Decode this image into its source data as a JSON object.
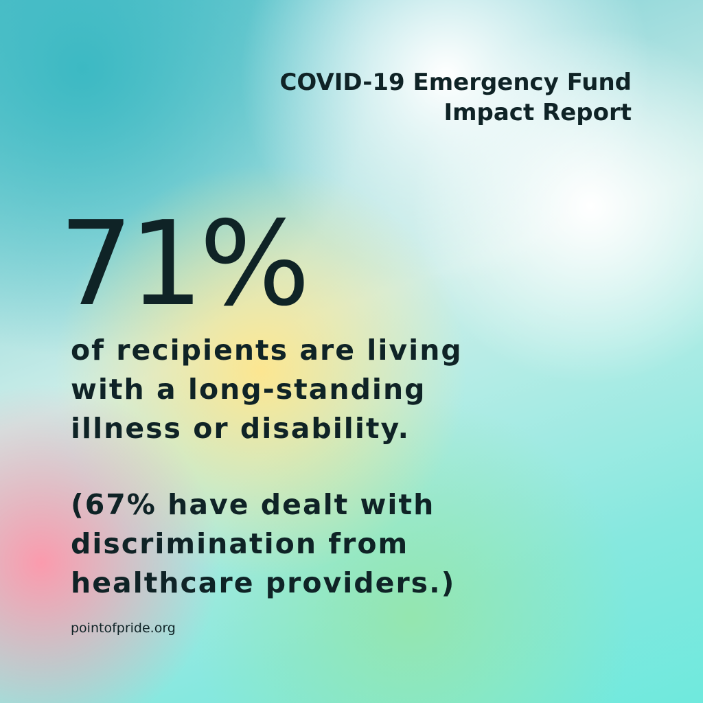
{
  "header": {
    "title_line1": "COVID-19 Emergency Fund",
    "title_line2": "Impact Report"
  },
  "stat": {
    "headline": "71%",
    "description": [
      "of recipients are living",
      "with a long-standing",
      "illness or disability."
    ],
    "note": [
      "(67% have dealt with",
      "discrimination from",
      "healthcare providers.)"
    ]
  },
  "footer": {
    "website": "pointofpride.org"
  }
}
